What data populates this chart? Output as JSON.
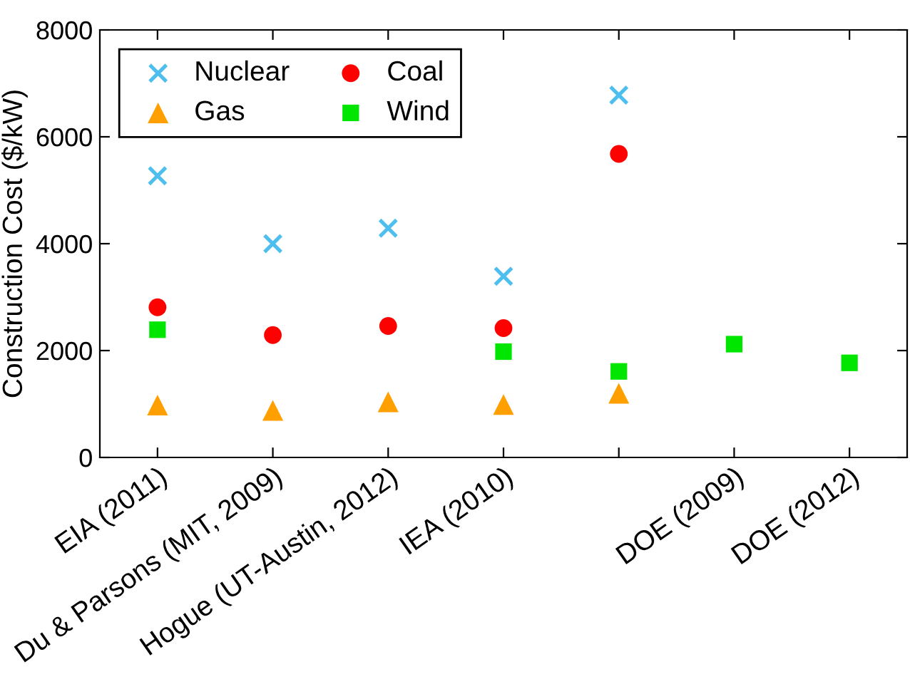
{
  "chart_data": {
    "type": "scatter",
    "ylabel": "Construction Cost ($/kW)",
    "categories": [
      "EIA (2011)",
      "Du & Parsons (MIT, 2009)",
      "Hogue (UT-Austin, 2012)",
      "IEA (2010)",
      null,
      "DOE (2009)",
      "DOE (2012)"
    ],
    "series": [
      {
        "name": "Nuclear",
        "color": "#4dbeee",
        "marker": "cross",
        "values": [
          5270,
          4000,
          4290,
          3390,
          6780,
          null,
          null
        ]
      },
      {
        "name": "Coal",
        "color": "#ff0000",
        "marker": "circle",
        "values": [
          2810,
          2290,
          2460,
          2420,
          5680,
          null,
          null
        ]
      },
      {
        "name": "Gas",
        "color": "#ffa000",
        "marker": "triangle",
        "values": [
          980,
          880,
          1040,
          990,
          1200,
          null,
          null
        ]
      },
      {
        "name": "Wind",
        "color": "#00e600",
        "marker": "square",
        "values": [
          2390,
          null,
          null,
          1980,
          1610,
          2120,
          1770
        ]
      }
    ],
    "ylim": [
      0,
      8000
    ],
    "yticks": [
      0,
      2000,
      4000,
      6000,
      8000
    ],
    "grid": false,
    "legend": "top left"
  }
}
